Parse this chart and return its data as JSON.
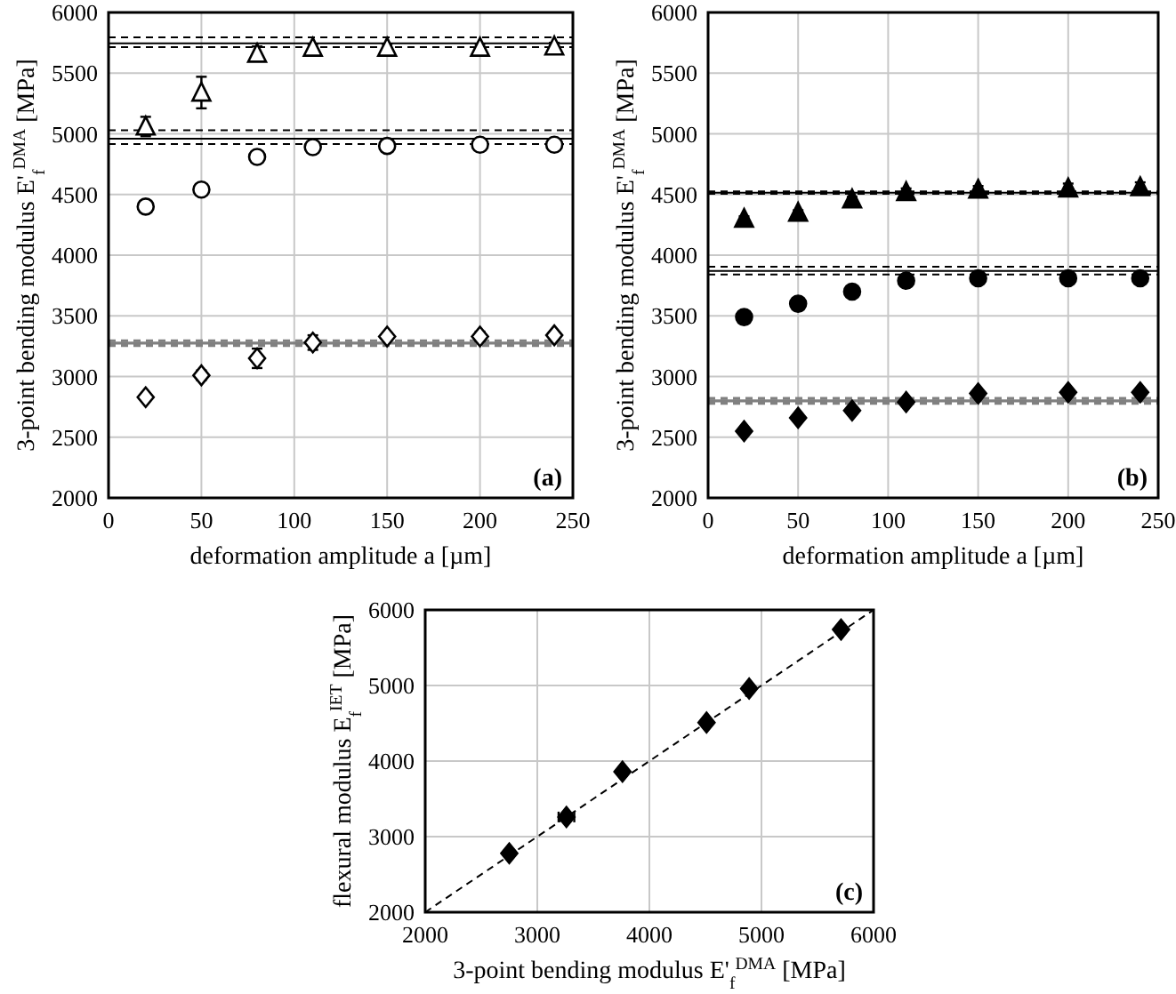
{
  "chart_data": [
    {
      "type": "scatter",
      "xlabel": "deformation amplitude a [µm]",
      "ylabel": "3-point bending modulus E'$_{f}$$^{DMA}$ [MPa]",
      "x": [
        20,
        50,
        80,
        110,
        150,
        200,
        240
      ],
      "xlim": [
        0,
        250
      ],
      "xticks": [
        0,
        50,
        100,
        150,
        200,
        250
      ],
      "ylim": [
        2000,
        6000
      ],
      "yticks": [
        2000,
        2500,
        3000,
        3500,
        4000,
        4500,
        5000,
        5500,
        6000
      ],
      "grid": true,
      "annotations": [
        "(a)"
      ],
      "series": [
        {
          "color": "#ffffff",
          "marker": "triangle",
          "values": [
            5060,
            5340,
            5660,
            5710,
            5710,
            5710,
            5720
          ],
          "errors": [
            80,
            130,
            60,
            30,
            30,
            30,
            30
          ]
        },
        {
          "color": "#ffffff",
          "marker": "circle",
          "values": [
            4400,
            4540,
            4810,
            4890,
            4900,
            4910,
            4910
          ],
          "errors": [
            30,
            40,
            40,
            25,
            20,
            20,
            20
          ]
        },
        {
          "color": "#ffffff",
          "marker": "diamond",
          "values": [
            2830,
            3010,
            3150,
            3280,
            3330,
            3330,
            3340
          ],
          "errors": [
            20,
            40,
            80,
            60,
            30,
            40,
            30
          ]
        }
      ],
      "ref_lines": [
        {
          "axis": "y",
          "value": 5745,
          "color": "#000000",
          "line_style": "solid"
        },
        {
          "axis": "y",
          "value": 5795,
          "color": "#000000",
          "line_style": "dashed"
        },
        {
          "axis": "y",
          "value": 5715,
          "color": "#000000",
          "line_style": "dashed"
        },
        {
          "axis": "y",
          "value": 4960,
          "color": "#000000",
          "line_style": "solid"
        },
        {
          "axis": "y",
          "value": 5030,
          "color": "#000000",
          "line_style": "dashed"
        },
        {
          "axis": "y",
          "value": 4915,
          "color": "#000000",
          "line_style": "dashed"
        },
        {
          "axis": "y",
          "value": 3275,
          "color": "#808080",
          "line_style": "solid"
        },
        {
          "axis": "y",
          "value": 3295,
          "color": "#808080",
          "line_style": "dashed"
        },
        {
          "axis": "y",
          "value": 3255,
          "color": "#808080",
          "line_style": "dashed"
        }
      ]
    },
    {
      "type": "scatter",
      "xlabel": "deformation amplitude a [µm]",
      "ylabel": "3-point bending modulus E'$_{f}$$^{DMA}$ [MPa]",
      "x": [
        20,
        50,
        80,
        110,
        150,
        200,
        240
      ],
      "xlim": [
        0,
        250
      ],
      "xticks": [
        0,
        50,
        100,
        150,
        200,
        250
      ],
      "ylim": [
        2000,
        6000
      ],
      "yticks": [
        2000,
        2500,
        3000,
        3500,
        4000,
        4500,
        5000,
        5500,
        6000
      ],
      "grid": true,
      "annotations": [
        "(b)"
      ],
      "series": [
        {
          "color": "#000000",
          "marker": "triangle",
          "values": [
            4300,
            4350,
            4460,
            4520,
            4540,
            4550,
            4560
          ],
          "errors": [
            20,
            20,
            20,
            30,
            30,
            40,
            40
          ]
        },
        {
          "color": "#000000",
          "marker": "circle",
          "values": [
            3490,
            3600,
            3700,
            3790,
            3810,
            3810,
            3810
          ],
          "errors": [
            40,
            20,
            20,
            20,
            20,
            20,
            20
          ]
        },
        {
          "color": "#000000",
          "marker": "diamond",
          "values": [
            2550,
            2660,
            2720,
            2790,
            2860,
            2870,
            2870
          ],
          "errors": [
            20,
            20,
            20,
            20,
            20,
            20,
            20
          ]
        }
      ],
      "ref_lines": [
        {
          "axis": "y",
          "value": 4515,
          "color": "#000000",
          "line_style": "solid"
        },
        {
          "axis": "y",
          "value": 4525,
          "color": "#000000",
          "line_style": "dashed"
        },
        {
          "axis": "y",
          "value": 4505,
          "color": "#000000",
          "line_style": "dashed"
        },
        {
          "axis": "y",
          "value": 3870,
          "color": "#000000",
          "line_style": "solid"
        },
        {
          "axis": "y",
          "value": 3905,
          "color": "#000000",
          "line_style": "dashed"
        },
        {
          "axis": "y",
          "value": 3840,
          "color": "#000000",
          "line_style": "dashed"
        },
        {
          "axis": "y",
          "value": 2800,
          "color": "#808080",
          "line_style": "solid"
        },
        {
          "axis": "y",
          "value": 2820,
          "color": "#808080",
          "line_style": "dashed"
        },
        {
          "axis": "y",
          "value": 2780,
          "color": "#808080",
          "line_style": "dashed"
        }
      ]
    },
    {
      "type": "scatter",
      "xlabel": "3-point bending modulus E'$_{f}$$^{DMA}$ [MPa]",
      "ylabel": "flexural modulus E$_{f}$$^{IET}$ [MPa]",
      "xlim": [
        2000,
        6000
      ],
      "xticks": [
        2000,
        3000,
        4000,
        5000,
        6000
      ],
      "ylim": [
        2000,
        6000
      ],
      "yticks": [
        2000,
        3000,
        4000,
        5000,
        6000
      ],
      "grid": true,
      "annotations": [
        "(c)"
      ],
      "series": [
        {
          "color": "#000000",
          "marker": "diamond",
          "x": [
            2750,
            3260,
            3760,
            4510,
            4890,
            5710
          ],
          "values": [
            2780,
            3260,
            3860,
            4510,
            4960,
            5740
          ],
          "xerrors": [
            null,
            70,
            null,
            null,
            null,
            null
          ]
        },
        {
          "type": "line",
          "color": "#000000",
          "marker": "none",
          "line_style": "dashed",
          "x": [
            2000,
            6000
          ],
          "values": [
            2000,
            6000
          ]
        }
      ]
    }
  ]
}
